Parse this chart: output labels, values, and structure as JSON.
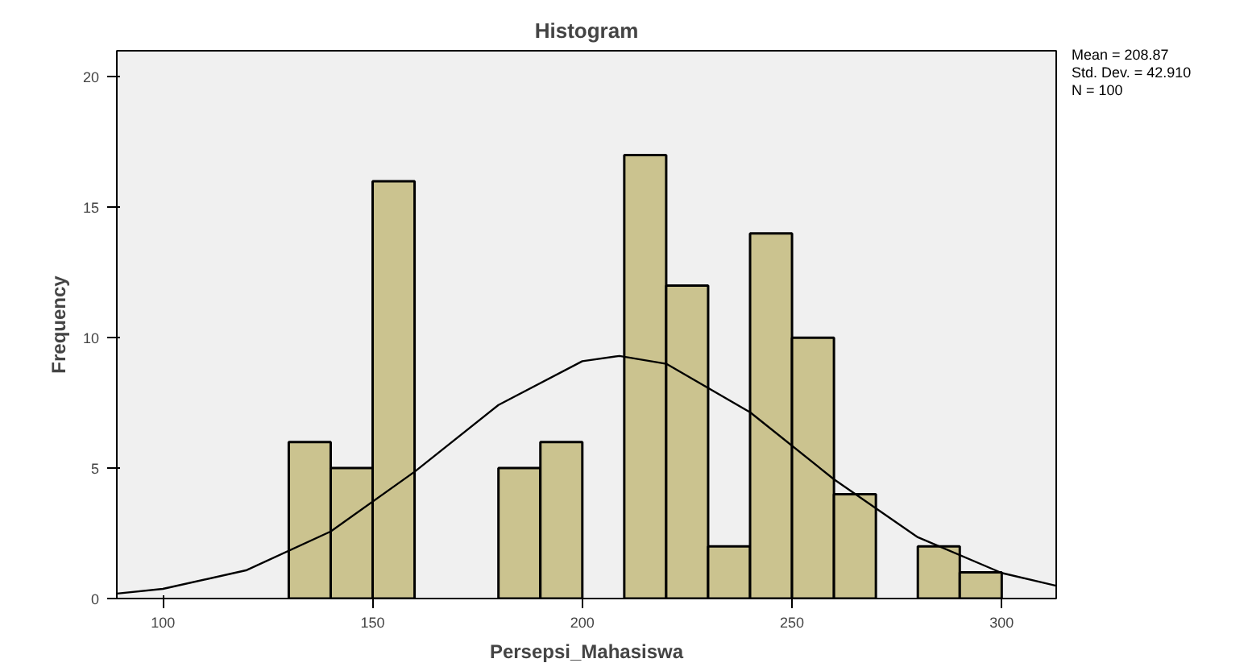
{
  "chart_data": {
    "type": "histogram",
    "title": "Histogram",
    "xlabel": "Persepsi_Mahasiswa",
    "ylabel": "Frequency",
    "xlim": [
      89,
      313
    ],
    "ylim": [
      0,
      21
    ],
    "xticks": [
      100,
      150,
      200,
      250,
      300
    ],
    "yticks": [
      0,
      5,
      10,
      15,
      20
    ],
    "grid": false,
    "series": [
      {
        "color": "#cbc38f",
        "bins": [
          130,
          140,
          150,
          160,
          170,
          180,
          190,
          200,
          210,
          220,
          230,
          240,
          250,
          260,
          270,
          280,
          290,
          300
        ],
        "values": [
          6,
          5,
          16,
          0,
          0,
          5,
          6,
          0,
          17,
          12,
          2,
          14,
          10,
          4,
          0,
          2,
          1
        ]
      },
      {
        "type": "line",
        "color": "#000000",
        "x": [
          89,
          100,
          120,
          140,
          160,
          180,
          200,
          208.87,
          220,
          240,
          260,
          280,
          300,
          313
        ],
        "values": [
          0.19,
          0.37,
          1.09,
          2.57,
          4.86,
          7.42,
          9.1,
          9.3,
          9.0,
          7.14,
          4.57,
          2.35,
          0.98,
          0.49
        ]
      }
    ],
    "annotations": [
      "Mean = 208.87",
      "Std. Dev. = 42.910",
      "N = 100"
    ]
  }
}
